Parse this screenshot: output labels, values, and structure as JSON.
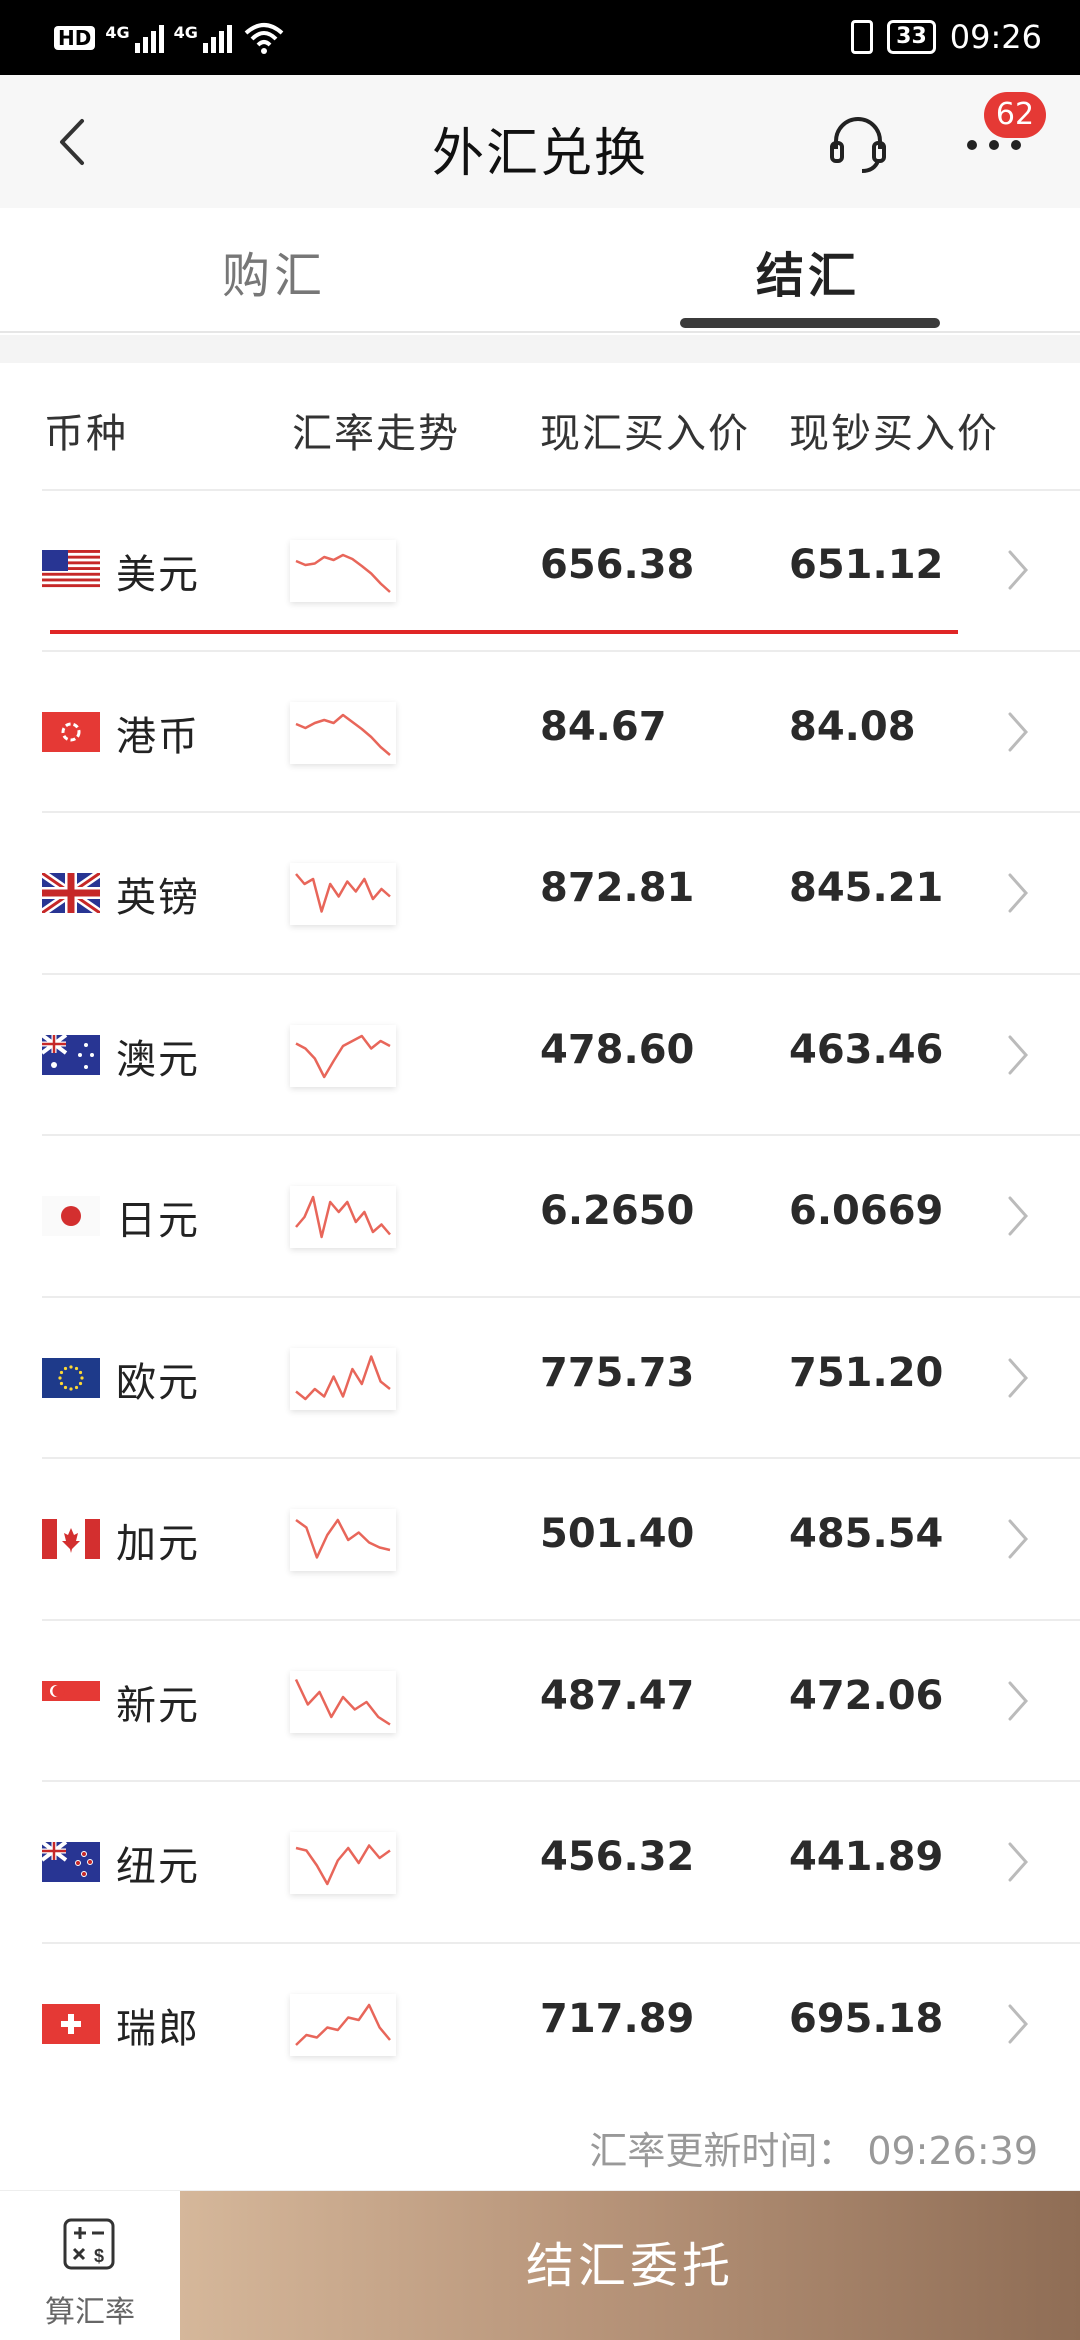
{
  "status_bar": {
    "hd": "HD",
    "net1": "4G",
    "net2": "4G",
    "battery": "33",
    "time": "09:26"
  },
  "header": {
    "title": "外汇兑换",
    "badge": "62"
  },
  "tabs": [
    {
      "label": "购汇",
      "active": false
    },
    {
      "label": "结汇",
      "active": true
    }
  ],
  "table": {
    "headers": [
      "币种",
      "汇率走势",
      "现汇买入价",
      "现钞买入价"
    ],
    "rows": [
      {
        "name": "美元",
        "flag": "us-flag",
        "spot": "656.38",
        "cash": "651.12",
        "trend": [
          0.3,
          0.38,
          0.35,
          0.22,
          0.28,
          0.18,
          0.26,
          0.4,
          0.55,
          0.75,
          0.92
        ]
      },
      {
        "name": "港币",
        "flag": "hk-flag",
        "spot": "84.67",
        "cash": "84.08",
        "trend": [
          0.32,
          0.4,
          0.3,
          0.24,
          0.3,
          0.14,
          0.28,
          0.42,
          0.58,
          0.78,
          0.94
        ]
      },
      {
        "name": "英镑",
        "flag": "uk-flag",
        "spot": "872.81",
        "cash": "845.21",
        "trend": [
          0.1,
          0.3,
          0.2,
          0.85,
          0.3,
          0.55,
          0.25,
          0.45,
          0.2,
          0.6,
          0.4,
          0.55
        ]
      },
      {
        "name": "澳元",
        "flag": "au-flag",
        "spot": "478.60",
        "cash": "463.46",
        "trend": [
          0.25,
          0.35,
          0.55,
          0.92,
          0.6,
          0.3,
          0.2,
          0.1,
          0.35,
          0.2,
          0.3
        ]
      },
      {
        "name": "日元",
        "flag": "jp-flag",
        "spot": "6.2650",
        "cash": "6.0669",
        "trend": [
          0.7,
          0.5,
          0.1,
          0.9,
          0.2,
          0.4,
          0.2,
          0.6,
          0.4,
          0.8,
          0.65,
          0.85
        ]
      },
      {
        "name": "欧元",
        "flag": "eu-flag",
        "spot": "775.73",
        "cash": "751.20",
        "trend": [
          0.75,
          0.9,
          0.7,
          0.85,
          0.45,
          0.85,
          0.3,
          0.6,
          0.05,
          0.55,
          0.7
        ]
      },
      {
        "name": "加元",
        "flag": "ca-flag",
        "spot": "501.40",
        "cash": "485.54",
        "trend": [
          0.1,
          0.25,
          0.85,
          0.4,
          0.1,
          0.5,
          0.35,
          0.55,
          0.65,
          0.7
        ]
      },
      {
        "name": "新元",
        "flag": "sg-flag",
        "spot": "487.47",
        "cash": "472.06",
        "trend": [
          0.05,
          0.55,
          0.3,
          0.8,
          0.4,
          0.65,
          0.5,
          0.8,
          0.95
        ]
      },
      {
        "name": "纽元",
        "flag": "nz-flag",
        "spot": "456.32",
        "cash": "441.89",
        "trend": [
          0.2,
          0.25,
          0.55,
          0.92,
          0.45,
          0.2,
          0.5,
          0.15,
          0.4,
          0.25
        ]
      },
      {
        "name": "瑞郎",
        "flag": "ch-flag",
        "spot": "717.89",
        "cash": "695.18",
        "trend": [
          0.9,
          0.7,
          0.75,
          0.55,
          0.6,
          0.35,
          0.4,
          0.1,
          0.55,
          0.8
        ]
      }
    ]
  },
  "update": {
    "label": "汇率更新时间：",
    "time": "09:26:39"
  },
  "bottom": {
    "calc_label": "算汇率",
    "submit_label": "结汇委托"
  },
  "colors": {
    "accent_red": "#e02626",
    "badge_red": "#e53935",
    "trend_line": "#e8665a",
    "submit_gradient_start": "#d5b79a",
    "submit_gradient_end": "#8f6d55"
  }
}
